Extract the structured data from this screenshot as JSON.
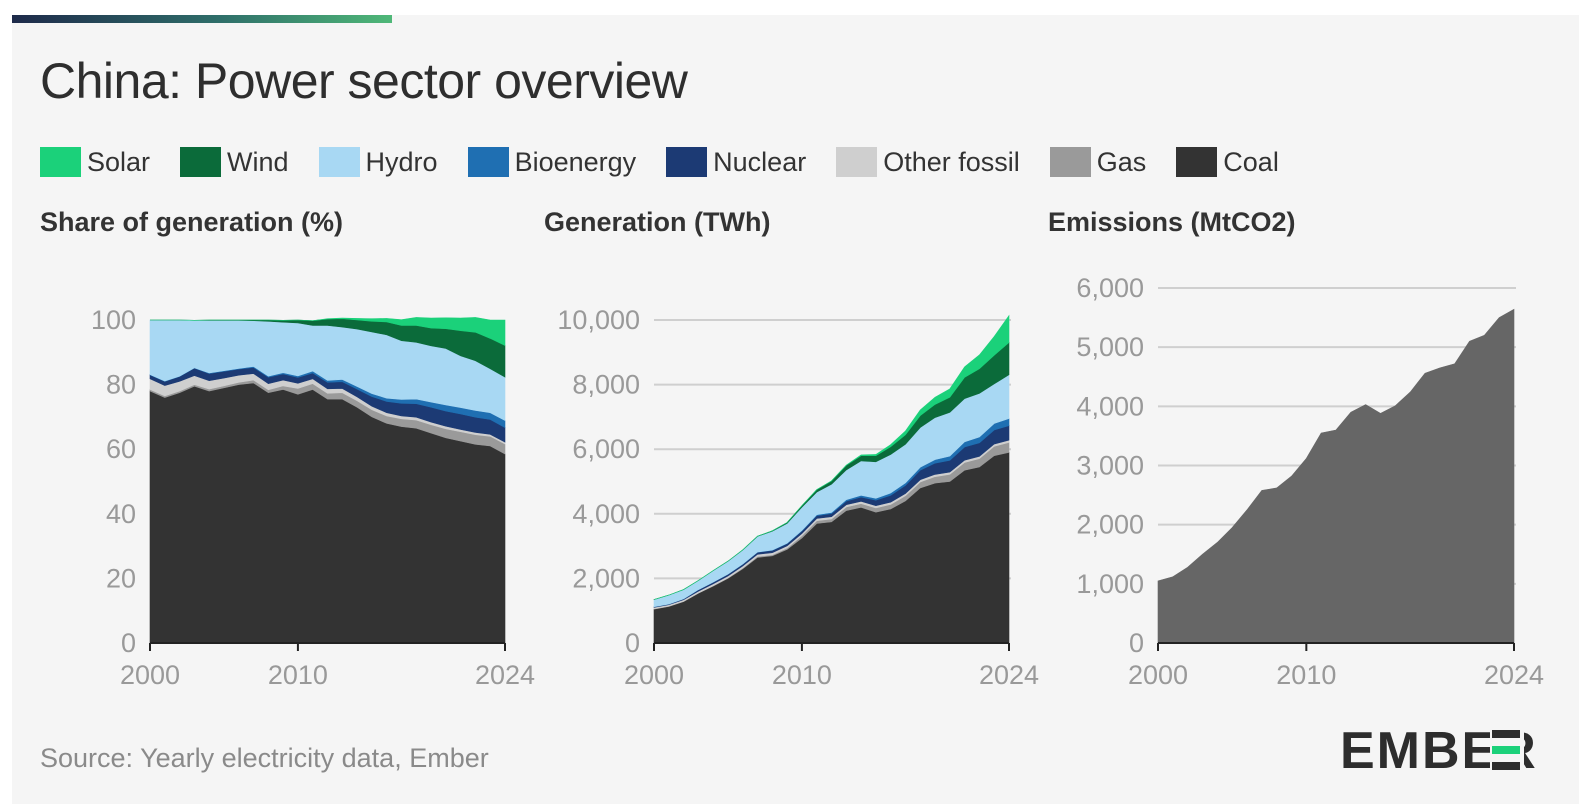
{
  "title": "China: Power sector overview",
  "legend": [
    {
      "label": "Solar",
      "color": "#1bd17a"
    },
    {
      "label": "Wind",
      "color": "#0b6b3a"
    },
    {
      "label": "Hydro",
      "color": "#a8d8f3"
    },
    {
      "label": "Bioenergy",
      "color": "#1f6fb2"
    },
    {
      "label": "Nuclear",
      "color": "#1c3a74"
    },
    {
      "label": "Other fossil",
      "color": "#cfcfcf"
    },
    {
      "label": "Gas",
      "color": "#9a9a9a"
    },
    {
      "label": "Coal",
      "color": "#333333"
    }
  ],
  "source": "Source: Yearly electricity data, Ember",
  "logo": "EMBER",
  "chart_data": [
    {
      "type": "area",
      "stacked": true,
      "title": "Share of generation (%)",
      "x": [
        2000,
        2001,
        2002,
        2003,
        2004,
        2005,
        2006,
        2007,
        2008,
        2009,
        2010,
        2011,
        2012,
        2013,
        2014,
        2015,
        2016,
        2017,
        2018,
        2019,
        2020,
        2021,
        2022,
        2023,
        2024
      ],
      "xticks": [
        "2000",
        "2010",
        "2024"
      ],
      "ylim": [
        0,
        100
      ],
      "yticks": [
        "0",
        "20",
        "40",
        "60",
        "80",
        "100"
      ],
      "grid": false,
      "series": [
        {
          "name": "Coal",
          "color": "#333333",
          "values": [
            78,
            76,
            77.5,
            79.5,
            78,
            79,
            80,
            80.5,
            77.5,
            78.5,
            77,
            78.5,
            75.5,
            75.5,
            73,
            70,
            68,
            67,
            66.5,
            65,
            63.5,
            62.5,
            61.5,
            61,
            58.5
          ]
        },
        {
          "name": "Gas",
          "color": "#9a9a9a",
          "values": [
            0.5,
            0.5,
            0.5,
            0.5,
            0.6,
            0.6,
            0.7,
            0.9,
            0.9,
            1.1,
            1.8,
            1.8,
            1.8,
            2.0,
            2.0,
            2.2,
            2.3,
            2.4,
            2.5,
            2.6,
            2.8,
            2.9,
            3.0,
            3.0,
            3.1
          ]
        },
        {
          "name": "Other fossil",
          "color": "#cfcfcf",
          "values": [
            3.3,
            3.2,
            3.0,
            2.8,
            2.6,
            2.4,
            2.2,
            2.0,
            1.9,
            1.8,
            1.6,
            1.5,
            1.4,
            1.3,
            1.2,
            1.1,
            1.0,
            0.9,
            0.9,
            0.8,
            0.8,
            0.7,
            0.7,
            0.6,
            0.6
          ]
        },
        {
          "name": "Nuclear",
          "color": "#1c3a74",
          "values": [
            1.2,
            1.3,
            1.5,
            2.3,
            2.2,
            2.1,
            1.9,
            1.9,
            2.0,
            1.9,
            1.8,
            1.8,
            2.0,
            2.1,
            2.4,
            3.0,
            3.5,
            3.9,
            4.2,
            4.6,
            4.7,
            4.8,
            4.7,
            4.6,
            4.5
          ]
        },
        {
          "name": "Bioenergy",
          "color": "#1f6fb2",
          "values": [
            0.1,
            0.1,
            0.1,
            0.1,
            0.2,
            0.2,
            0.2,
            0.3,
            0.3,
            0.4,
            0.5,
            0.6,
            0.6,
            0.7,
            0.8,
            0.9,
            1.0,
            1.2,
            1.4,
            1.6,
            1.9,
            2.0,
            2.1,
            2.1,
            2.2
          ]
        },
        {
          "name": "Hydro",
          "color": "#a8d8f3",
          "values": [
            16.9,
            18.9,
            17.4,
            14.7,
            16.3,
            15.6,
            14.9,
            14.2,
            17.0,
            15.6,
            16.4,
            14.1,
            17.0,
            16.2,
            17.8,
            19.1,
            19.6,
            18.2,
            17.6,
            17.4,
            17.5,
            16.0,
            15.4,
            13.6,
            13.4
          ]
        },
        {
          "name": "Wind",
          "color": "#0b6b3a",
          "values": [
            0,
            0,
            0,
            0,
            0.1,
            0.1,
            0.1,
            0.2,
            0.4,
            0.6,
            0.9,
            1.5,
            2.0,
            2.6,
            2.8,
            3.3,
            4.0,
            4.7,
            5.2,
            5.5,
            6.1,
            7.8,
            8.8,
            9.4,
            9.8
          ]
        },
        {
          "name": "Solar",
          "color": "#1bd17a",
          "values": [
            0,
            0,
            0,
            0,
            0,
            0,
            0,
            0,
            0,
            0,
            0,
            0,
            0.1,
            0.2,
            0.5,
            0.8,
            1.1,
            1.8,
            2.5,
            3.1,
            3.4,
            3.9,
            4.6,
            5.7,
            7.9
          ]
        }
      ]
    },
    {
      "type": "area",
      "stacked": true,
      "title": "Generation (TWh)",
      "x": [
        2000,
        2001,
        2002,
        2003,
        2004,
        2005,
        2006,
        2007,
        2008,
        2009,
        2010,
        2011,
        2012,
        2013,
        2014,
        2015,
        2016,
        2017,
        2018,
        2019,
        2020,
        2021,
        2022,
        2023,
        2024
      ],
      "xticks": [
        "2000",
        "2010",
        "2024"
      ],
      "ylim": [
        0,
        10000
      ],
      "yticks": [
        "0",
        "2,000",
        "4,000",
        "6,000",
        "8,000",
        "10,000"
      ],
      "grid": true,
      "series": [
        {
          "name": "Coal",
          "color": "#333333",
          "values": [
            1050,
            1130,
            1280,
            1540,
            1760,
            2000,
            2300,
            2650,
            2700,
            2900,
            3250,
            3700,
            3750,
            4100,
            4200,
            4050,
            4150,
            4400,
            4800,
            4950,
            5000,
            5350,
            5450,
            5800,
            5900
          ]
        },
        {
          "name": "Gas",
          "color": "#9a9a9a",
          "values": [
            7,
            8,
            9,
            10,
            13,
            15,
            20,
            30,
            31,
            40,
            75,
            85,
            90,
            110,
            115,
            130,
            140,
            160,
            185,
            200,
            220,
            240,
            260,
            290,
            310
          ]
        },
        {
          "name": "Other fossil",
          "color": "#cfcfcf",
          "values": [
            45,
            47,
            50,
            54,
            59,
            61,
            64,
            66,
            66,
            66,
            66,
            70,
            70,
            70,
            70,
            70,
            70,
            70,
            70,
            70,
            70,
            70,
            70,
            70,
            70
          ]
        },
        {
          "name": "Nuclear",
          "color": "#1c3a74",
          "values": [
            17,
            17,
            25,
            44,
            50,
            53,
            55,
            62,
            68,
            70,
            74,
            86,
            97,
            112,
            133,
            171,
            213,
            248,
            295,
            348,
            366,
            408,
            418,
            435,
            451
          ]
        },
        {
          "name": "Bioenergy",
          "color": "#1f6fb2",
          "values": [
            2,
            2,
            2,
            3,
            4,
            5,
            6,
            8,
            10,
            12,
            20,
            30,
            35,
            45,
            55,
            60,
            70,
            80,
            90,
            110,
            130,
            160,
            180,
            200,
            220
          ]
        },
        {
          "name": "Hydro",
          "color": "#a8d8f3",
          "values": [
            222,
            278,
            288,
            283,
            354,
            397,
            435,
            485,
            585,
            616,
            722,
            699,
            872,
            920,
            1064,
            1130,
            1193,
            1194,
            1232,
            1302,
            1355,
            1340,
            1352,
            1226,
            1354
          ]
        },
        {
          "name": "Wind",
          "color": "#0b6b3a",
          "values": [
            1,
            1,
            1,
            1,
            1,
            2,
            4,
            6,
            14,
            27,
            45,
            74,
            103,
            141,
            160,
            186,
            240,
            295,
            366,
            406,
            467,
            656,
            762,
            886,
            997
          ]
        },
        {
          "name": "Solar",
          "color": "#1bd17a",
          "values": [
            0,
            0,
            0,
            0,
            0,
            0,
            0,
            0,
            0,
            0,
            1,
            3,
            4,
            9,
            24,
            40,
            66,
            118,
            177,
            224,
            261,
            327,
            427,
            584,
            834
          ]
        }
      ]
    },
    {
      "type": "area",
      "title": "Emissions (MtCO2)",
      "x": [
        2000,
        2001,
        2002,
        2003,
        2004,
        2005,
        2006,
        2007,
        2008,
        2009,
        2010,
        2011,
        2012,
        2013,
        2014,
        2015,
        2016,
        2017,
        2018,
        2019,
        2020,
        2021,
        2022,
        2023,
        2024
      ],
      "xticks": [
        "2000",
        "2010",
        "2024"
      ],
      "ylim": [
        0,
        6000
      ],
      "yticks": [
        "0",
        "1,000",
        "2,000",
        "3,000",
        "4,000",
        "5,000",
        "6,000"
      ],
      "grid": true,
      "series": [
        {
          "name": "",
          "color": "#666666",
          "values": [
            1050,
            1120,
            1280,
            1500,
            1700,
            1950,
            2250,
            2580,
            2620,
            2820,
            3120,
            3550,
            3600,
            3900,
            4030,
            3880,
            4010,
            4240,
            4560,
            4650,
            4720,
            5100,
            5200,
            5500,
            5640
          ]
        }
      ]
    }
  ]
}
